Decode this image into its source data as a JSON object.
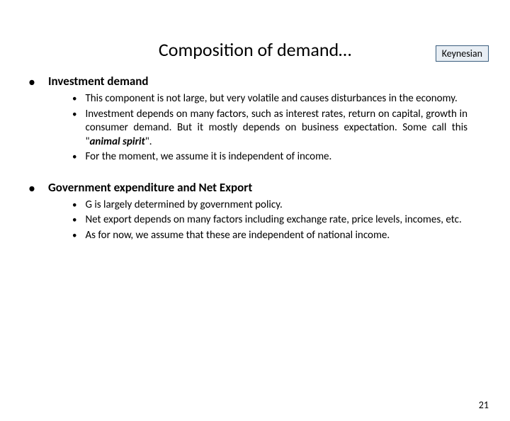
{
  "badge": {
    "label": "Keynesian",
    "border_color": "#3b5e7e",
    "bg_color": "#e8eef4"
  },
  "title": "Composition of demand…",
  "sections": [
    {
      "heading": "Investment demand",
      "items": [
        "This component is not large, but very volatile and causes disturbances in the economy.",
        "Investment depends on many factors, such as interest rates, return on capital, growth in consumer demand. But it mostly depends on business expectation. Some call this \"",
        "For the moment, we assume it is independent of income."
      ],
      "emphasis": {
        "index": 1,
        "suffix_italic": "animal spirit",
        "suffix_plain": "\"."
      }
    },
    {
      "heading": "Government expenditure and Net Export",
      "items": [
        "G is largely determined by government policy.",
        "Net export depends on many factors including exchange rate, price levels, incomes, etc.",
        "As for now, we assume that these are independent of national income."
      ]
    }
  ],
  "page_number": "21"
}
